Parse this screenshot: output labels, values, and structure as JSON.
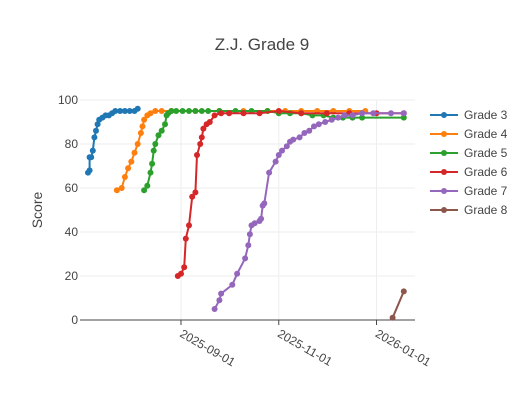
{
  "chart_data": {
    "type": "line",
    "title": "Z.J. Grade 9",
    "xlabel": "",
    "ylabel": "Score",
    "x_type": "date",
    "xlim": [
      "2025-06-30",
      "2026-01-25"
    ],
    "ylim": [
      0,
      100
    ],
    "y_ticks": [
      0,
      20,
      40,
      60,
      80,
      100
    ],
    "x_ticks": [
      "2025-09-01",
      "2025-11-01",
      "2026-01-01"
    ],
    "grid": true,
    "legend_position": "right",
    "series": [
      {
        "name": "Grade 3",
        "color": "#1f77b4",
        "points": [
          [
            "2025-07-05",
            67
          ],
          [
            "2025-07-06",
            68
          ],
          [
            "2025-07-06",
            74
          ],
          [
            "2025-07-07",
            74
          ],
          [
            "2025-07-08",
            77
          ],
          [
            "2025-07-09",
            83
          ],
          [
            "2025-07-10",
            86
          ],
          [
            "2025-07-11",
            89
          ],
          [
            "2025-07-12",
            91
          ],
          [
            "2025-07-14",
            92
          ],
          [
            "2025-07-16",
            93
          ],
          [
            "2025-07-18",
            93
          ],
          [
            "2025-07-20",
            94
          ],
          [
            "2025-07-22",
            95
          ],
          [
            "2025-07-25",
            95
          ],
          [
            "2025-07-28",
            95
          ],
          [
            "2025-07-31",
            95
          ],
          [
            "2025-08-03",
            95
          ],
          [
            "2025-08-05",
            96
          ]
        ]
      },
      {
        "name": "Grade 4",
        "color": "#ff7f0e",
        "points": [
          [
            "2025-07-23",
            59
          ],
          [
            "2025-07-26",
            60
          ],
          [
            "2025-07-28",
            65
          ],
          [
            "2025-07-30",
            69
          ],
          [
            "2025-08-01",
            72
          ],
          [
            "2025-08-03",
            76
          ],
          [
            "2025-08-05",
            80
          ],
          [
            "2025-08-07",
            85
          ],
          [
            "2025-08-08",
            88
          ],
          [
            "2025-08-09",
            91
          ],
          [
            "2025-08-11",
            93
          ],
          [
            "2025-08-13",
            94
          ],
          [
            "2025-08-16",
            95
          ],
          [
            "2025-08-20",
            95
          ],
          [
            "2025-08-26",
            95
          ],
          [
            "2025-09-10",
            95
          ],
          [
            "2025-09-25",
            95
          ],
          [
            "2025-10-10",
            95
          ],
          [
            "2025-10-25",
            95
          ],
          [
            "2025-11-05",
            95
          ],
          [
            "2025-11-15",
            95
          ],
          [
            "2025-11-25",
            95
          ],
          [
            "2025-12-05",
            95
          ],
          [
            "2025-12-15",
            95
          ],
          [
            "2025-12-25",
            95
          ]
        ]
      },
      {
        "name": "Grade 5",
        "color": "#2ca02c",
        "points": [
          [
            "2025-08-09",
            59
          ],
          [
            "2025-08-11",
            61
          ],
          [
            "2025-08-13",
            67
          ],
          [
            "2025-08-14",
            71
          ],
          [
            "2025-08-15",
            77
          ],
          [
            "2025-08-16",
            80
          ],
          [
            "2025-08-18",
            84
          ],
          [
            "2025-08-20",
            86
          ],
          [
            "2025-08-22",
            89
          ],
          [
            "2025-08-23",
            93
          ],
          [
            "2025-08-24",
            94
          ],
          [
            "2025-08-26",
            95
          ],
          [
            "2025-08-29",
            95
          ],
          [
            "2025-09-02",
            95
          ],
          [
            "2025-09-06",
            95
          ],
          [
            "2025-09-10",
            95
          ],
          [
            "2025-09-14",
            95
          ],
          [
            "2025-09-18",
            95
          ],
          [
            "2025-09-25",
            95
          ],
          [
            "2025-10-05",
            95
          ],
          [
            "2025-10-15",
            95
          ],
          [
            "2025-10-25",
            95
          ],
          [
            "2025-11-01",
            94
          ],
          [
            "2025-11-08",
            94
          ],
          [
            "2025-11-15",
            94
          ],
          [
            "2025-11-22",
            93
          ],
          [
            "2025-11-29",
            93
          ],
          [
            "2025-12-05",
            92
          ],
          [
            "2025-12-11",
            92
          ],
          [
            "2025-12-17",
            92
          ],
          [
            "2025-12-23",
            92
          ],
          [
            "2026-01-18",
            92
          ]
        ]
      },
      {
        "name": "Grade 6",
        "color": "#d62728",
        "points": [
          [
            "2025-08-30",
            20
          ],
          [
            "2025-09-01",
            21
          ],
          [
            "2025-09-03",
            24
          ],
          [
            "2025-09-04",
            37
          ],
          [
            "2025-09-06",
            43
          ],
          [
            "2025-09-08",
            56
          ],
          [
            "2025-09-10",
            58
          ],
          [
            "2025-09-11",
            75
          ],
          [
            "2025-09-13",
            80
          ],
          [
            "2025-09-14",
            83
          ],
          [
            "2025-09-15",
            87
          ],
          [
            "2025-09-17",
            89
          ],
          [
            "2025-09-19",
            90
          ],
          [
            "2025-09-22",
            93
          ],
          [
            "2025-09-26",
            94
          ],
          [
            "2025-10-01",
            94
          ],
          [
            "2025-10-10",
            94
          ],
          [
            "2025-10-20",
            94
          ],
          [
            "2025-11-01",
            95
          ],
          [
            "2025-11-15",
            94
          ],
          [
            "2025-12-01",
            94
          ],
          [
            "2025-12-15",
            94
          ],
          [
            "2026-01-01",
            94
          ],
          [
            "2026-01-18",
            94
          ]
        ]
      },
      {
        "name": "Grade 7",
        "color": "#9467bd",
        "points": [
          [
            "2025-09-22",
            5
          ],
          [
            "2025-09-25",
            9
          ],
          [
            "2025-09-26",
            12
          ],
          [
            "2025-10-03",
            16
          ],
          [
            "2025-10-06",
            21
          ],
          [
            "2025-10-11",
            28
          ],
          [
            "2025-10-13",
            34
          ],
          [
            "2025-10-14",
            39
          ],
          [
            "2025-10-15",
            43
          ],
          [
            "2025-10-17",
            44
          ],
          [
            "2025-10-20",
            45
          ],
          [
            "2025-10-21",
            46
          ],
          [
            "2025-10-22",
            52
          ],
          [
            "2025-10-23",
            53
          ],
          [
            "2025-10-26",
            67
          ],
          [
            "2025-10-30",
            72
          ],
          [
            "2025-11-01",
            75
          ],
          [
            "2025-11-03",
            77
          ],
          [
            "2025-11-06",
            79
          ],
          [
            "2025-11-08",
            81
          ],
          [
            "2025-11-10",
            82
          ],
          [
            "2025-11-14",
            83
          ],
          [
            "2025-11-17",
            85
          ],
          [
            "2025-11-20",
            86
          ],
          [
            "2025-11-23",
            88
          ],
          [
            "2025-11-26",
            89
          ],
          [
            "2025-11-30",
            90
          ],
          [
            "2025-12-04",
            91
          ],
          [
            "2025-12-08",
            92
          ],
          [
            "2025-12-12",
            93
          ],
          [
            "2025-12-17",
            93
          ],
          [
            "2025-12-23",
            94
          ],
          [
            "2025-12-30",
            94
          ],
          [
            "2026-01-10",
            94
          ],
          [
            "2026-01-18",
            94
          ]
        ]
      },
      {
        "name": "Grade 8",
        "color": "#8c564b",
        "points": [
          [
            "2026-01-11",
            1
          ],
          [
            "2026-01-18",
            13
          ]
        ]
      }
    ]
  }
}
